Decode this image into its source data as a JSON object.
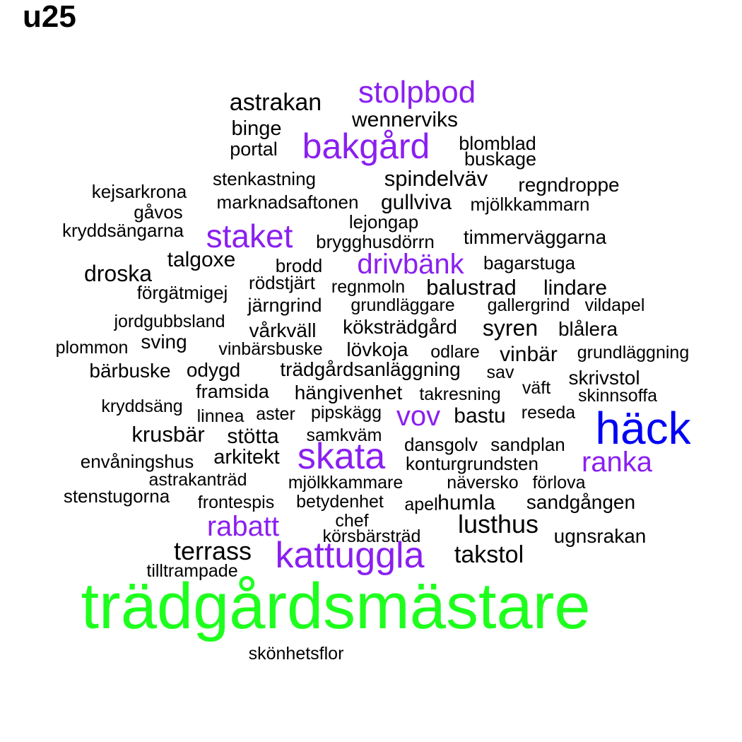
{
  "title": "u25",
  "colors": {
    "black": "#000000",
    "purple": "#8a1ff0",
    "blue": "#0000f5",
    "green": "#1eff1e"
  },
  "words": [
    {
      "text": "trädgårdsmästare",
      "color": "green"
    },
    {
      "text": "häck",
      "color": "blue"
    },
    {
      "text": "kattuggla",
      "color": "purple"
    },
    {
      "text": "skata",
      "color": "purple"
    },
    {
      "text": "bakgård",
      "color": "purple"
    },
    {
      "text": "staket",
      "color": "purple"
    },
    {
      "text": "stolpbod",
      "color": "purple"
    },
    {
      "text": "rabatt",
      "color": "purple"
    },
    {
      "text": "drivbänk",
      "color": "purple"
    },
    {
      "text": "ranka",
      "color": "purple"
    },
    {
      "text": "vov",
      "color": "purple"
    },
    {
      "text": "terrass",
      "color": "black"
    },
    {
      "text": "lusthus",
      "color": "black"
    },
    {
      "text": "takstol",
      "color": "black"
    },
    {
      "text": "astrakan",
      "color": "black"
    },
    {
      "text": "droska",
      "color": "black"
    },
    {
      "text": "krusbär",
      "color": "black"
    },
    {
      "text": "syren",
      "color": "black"
    },
    {
      "text": "balustrad",
      "color": "black"
    },
    {
      "text": "spindelväv",
      "color": "black"
    },
    {
      "text": "wennerviks",
      "color": "black"
    },
    {
      "text": "gullviva",
      "color": "black"
    },
    {
      "text": "talgoxe",
      "color": "black"
    },
    {
      "text": "lindare",
      "color": "black"
    },
    {
      "text": "stötta",
      "color": "black"
    },
    {
      "text": "arkitekt",
      "color": "black"
    },
    {
      "text": "humla",
      "color": "black"
    },
    {
      "text": "bastu",
      "color": "black"
    },
    {
      "text": "vinbär",
      "color": "black"
    },
    {
      "text": "binge",
      "color": "black"
    },
    {
      "text": "bärbuske",
      "color": "black"
    },
    {
      "text": "timmerväggarna",
      "color": "black"
    },
    {
      "text": "trädgårdsanläggning",
      "color": "black"
    },
    {
      "text": "köksträdgård",
      "color": "black"
    },
    {
      "text": "blålera",
      "color": "black"
    },
    {
      "text": "vårkväll",
      "color": "black"
    },
    {
      "text": "sving",
      "color": "black"
    },
    {
      "text": "odygd",
      "color": "black"
    },
    {
      "text": "regndroppe",
      "color": "black"
    },
    {
      "text": "skrivstol",
      "color": "black"
    },
    {
      "text": "ugnsrakan",
      "color": "black"
    },
    {
      "text": "sandgången",
      "color": "black"
    },
    {
      "text": "lövkoja",
      "color": "black"
    },
    {
      "text": "rödstjärt",
      "color": "black"
    },
    {
      "text": "järngrind",
      "color": "black"
    },
    {
      "text": "framsida",
      "color": "black"
    },
    {
      "text": "hängivenhet",
      "color": "black"
    },
    {
      "text": "portal",
      "color": "black"
    },
    {
      "text": "blomblad",
      "color": "black"
    },
    {
      "text": "buskage",
      "color": "black"
    },
    {
      "text": "stenkastning",
      "color": "black"
    },
    {
      "text": "kejsarkrona",
      "color": "black"
    },
    {
      "text": "marknadsaftonen",
      "color": "black"
    },
    {
      "text": "mjölkkammarn",
      "color": "black"
    },
    {
      "text": "gåvos",
      "color": "black"
    },
    {
      "text": "lejongap",
      "color": "black"
    },
    {
      "text": "kryddsängarna",
      "color": "black"
    },
    {
      "text": "brygghusdörrn",
      "color": "black"
    },
    {
      "text": "bagarstuga",
      "color": "black"
    },
    {
      "text": "brodd",
      "color": "black"
    },
    {
      "text": "förgätmigej",
      "color": "black"
    },
    {
      "text": "regnmoln",
      "color": "black"
    },
    {
      "text": "grundläggare",
      "color": "black"
    },
    {
      "text": "gallergrind",
      "color": "black"
    },
    {
      "text": "vildapel",
      "color": "black"
    },
    {
      "text": "jordgubbsland",
      "color": "black"
    },
    {
      "text": "plommon",
      "color": "black"
    },
    {
      "text": "vinbärsbuske",
      "color": "black"
    },
    {
      "text": "odlare",
      "color": "black"
    },
    {
      "text": "grundläggning",
      "color": "black"
    },
    {
      "text": "sav",
      "color": "black"
    },
    {
      "text": "takresning",
      "color": "black"
    },
    {
      "text": "väft",
      "color": "black"
    },
    {
      "text": "skinnsoffa",
      "color": "black"
    },
    {
      "text": "kryddsäng",
      "color": "black"
    },
    {
      "text": "linnea",
      "color": "black"
    },
    {
      "text": "aster",
      "color": "black"
    },
    {
      "text": "pipskägg",
      "color": "black"
    },
    {
      "text": "reseda",
      "color": "black"
    },
    {
      "text": "samkväm",
      "color": "black"
    },
    {
      "text": "dansgolv",
      "color": "black"
    },
    {
      "text": "sandplan",
      "color": "black"
    },
    {
      "text": "envåningshus",
      "color": "black"
    },
    {
      "text": "konturgrundsten",
      "color": "black"
    },
    {
      "text": "astrakanträd",
      "color": "black"
    },
    {
      "text": "mjölkkammare",
      "color": "black"
    },
    {
      "text": "näversko",
      "color": "black"
    },
    {
      "text": "förlova",
      "color": "black"
    },
    {
      "text": "stenstugorna",
      "color": "black"
    },
    {
      "text": "frontespis",
      "color": "black"
    },
    {
      "text": "betydenhet",
      "color": "black"
    },
    {
      "text": "apel",
      "color": "black"
    },
    {
      "text": "chef",
      "color": "black"
    },
    {
      "text": "körsbärsträd",
      "color": "black"
    },
    {
      "text": "tilltrampade",
      "color": "black"
    },
    {
      "text": "skönhetsflor",
      "color": "black"
    }
  ]
}
